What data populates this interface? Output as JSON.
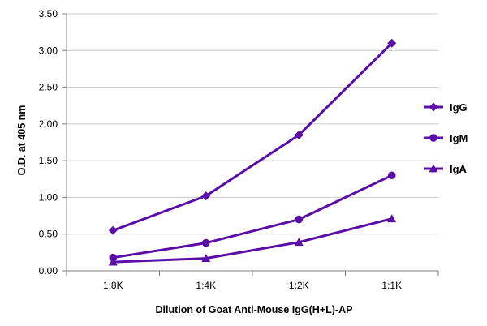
{
  "chart_data": {
    "type": "line",
    "title": "",
    "xlabel": "Dilution of Goat Anti-Mouse IgG(H+L)-AP",
    "ylabel": "O.D. at 405 nm",
    "categories": [
      "1:8K",
      "1:4K",
      "1:2K",
      "1:1K"
    ],
    "yticks": [
      "0.00",
      "0.50",
      "1.00",
      "1.50",
      "2.00",
      "2.50",
      "3.00",
      "3.50"
    ],
    "ylim": [
      0,
      3.5
    ],
    "grid": "horizontal",
    "legend_position": "right",
    "color": "#5b0da8",
    "series": [
      {
        "name": "IgG",
        "marker": "diamond",
        "values": [
          0.55,
          1.02,
          1.85,
          3.1
        ]
      },
      {
        "name": "IgM",
        "marker": "circle",
        "values": [
          0.18,
          0.38,
          0.7,
          1.3
        ]
      },
      {
        "name": "IgA",
        "marker": "triangle",
        "values": [
          0.12,
          0.17,
          0.39,
          0.71
        ]
      }
    ]
  }
}
